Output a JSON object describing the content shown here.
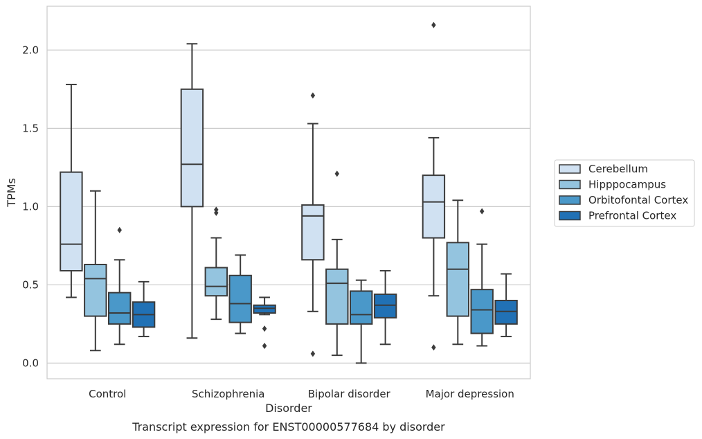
{
  "caption": "Transcript expression for ENST00000577684 by disorder",
  "chart_data": {
    "type": "boxplot",
    "title": "",
    "xlabel": "Disorder",
    "ylabel": "TPMs",
    "ylim": [
      -0.1,
      2.28
    ],
    "yticks": [
      "0.0",
      "0.5",
      "1.0",
      "1.5",
      "2.0"
    ],
    "grid": "horizontal",
    "legend_position": "right",
    "categories": [
      "Control",
      "Schizophrenia",
      "Bipolar disorder",
      "Major depression"
    ],
    "series": [
      {
        "name": "Cerebellum",
        "color": "#d0e1f2",
        "boxes": [
          {
            "whislo": 0.42,
            "q1": 0.59,
            "med": 0.76,
            "q3": 1.22,
            "whishi": 1.78,
            "fliers": []
          },
          {
            "whislo": 0.16,
            "q1": 1.0,
            "med": 1.27,
            "q3": 1.75,
            "whishi": 2.04,
            "fliers": []
          },
          {
            "whislo": 0.33,
            "q1": 0.66,
            "med": 0.94,
            "q3": 1.01,
            "whishi": 1.53,
            "fliers": [
              1.71,
              0.06
            ]
          },
          {
            "whislo": 0.43,
            "q1": 0.8,
            "med": 1.03,
            "q3": 1.2,
            "whishi": 1.44,
            "fliers": [
              2.16,
              0.1
            ]
          }
        ]
      },
      {
        "name": "Hipppocampus",
        "color": "#94c4df",
        "boxes": [
          {
            "whislo": 0.08,
            "q1": 0.3,
            "med": 0.54,
            "q3": 0.63,
            "whishi": 1.1,
            "fliers": []
          },
          {
            "whislo": 0.28,
            "q1": 0.43,
            "med": 0.49,
            "q3": 0.61,
            "whishi": 0.8,
            "fliers": [
              0.98,
              0.96
            ]
          },
          {
            "whislo": 0.05,
            "q1": 0.25,
            "med": 0.51,
            "q3": 0.6,
            "whishi": 0.79,
            "fliers": [
              1.21
            ]
          },
          {
            "whislo": 0.12,
            "q1": 0.3,
            "med": 0.6,
            "q3": 0.77,
            "whishi": 1.04,
            "fliers": []
          }
        ]
      },
      {
        "name": "Orbitofontal Cortex",
        "color": "#4a98c9",
        "boxes": [
          {
            "whislo": 0.12,
            "q1": 0.25,
            "med": 0.32,
            "q3": 0.45,
            "whishi": 0.66,
            "fliers": [
              0.85
            ]
          },
          {
            "whislo": 0.19,
            "q1": 0.26,
            "med": 0.38,
            "q3": 0.56,
            "whishi": 0.69,
            "fliers": []
          },
          {
            "whislo": 0.0,
            "q1": 0.25,
            "med": 0.31,
            "q3": 0.46,
            "whishi": 0.53,
            "fliers": []
          },
          {
            "whislo": 0.11,
            "q1": 0.19,
            "med": 0.34,
            "q3": 0.47,
            "whishi": 0.76,
            "fliers": [
              0.97
            ]
          }
        ]
      },
      {
        "name": "Prefrontal Cortex",
        "color": "#2171b5",
        "boxes": [
          {
            "whislo": 0.17,
            "q1": 0.23,
            "med": 0.31,
            "q3": 0.39,
            "whishi": 0.52,
            "fliers": []
          },
          {
            "whislo": 0.31,
            "q1": 0.32,
            "med": 0.35,
            "q3": 0.37,
            "whishi": 0.42,
            "fliers": [
              0.22,
              0.11
            ]
          },
          {
            "whislo": 0.12,
            "q1": 0.29,
            "med": 0.37,
            "q3": 0.44,
            "whishi": 0.59,
            "fliers": []
          },
          {
            "whislo": 0.17,
            "q1": 0.25,
            "med": 0.33,
            "q3": 0.4,
            "whishi": 0.57,
            "fliers": []
          }
        ]
      }
    ]
  }
}
